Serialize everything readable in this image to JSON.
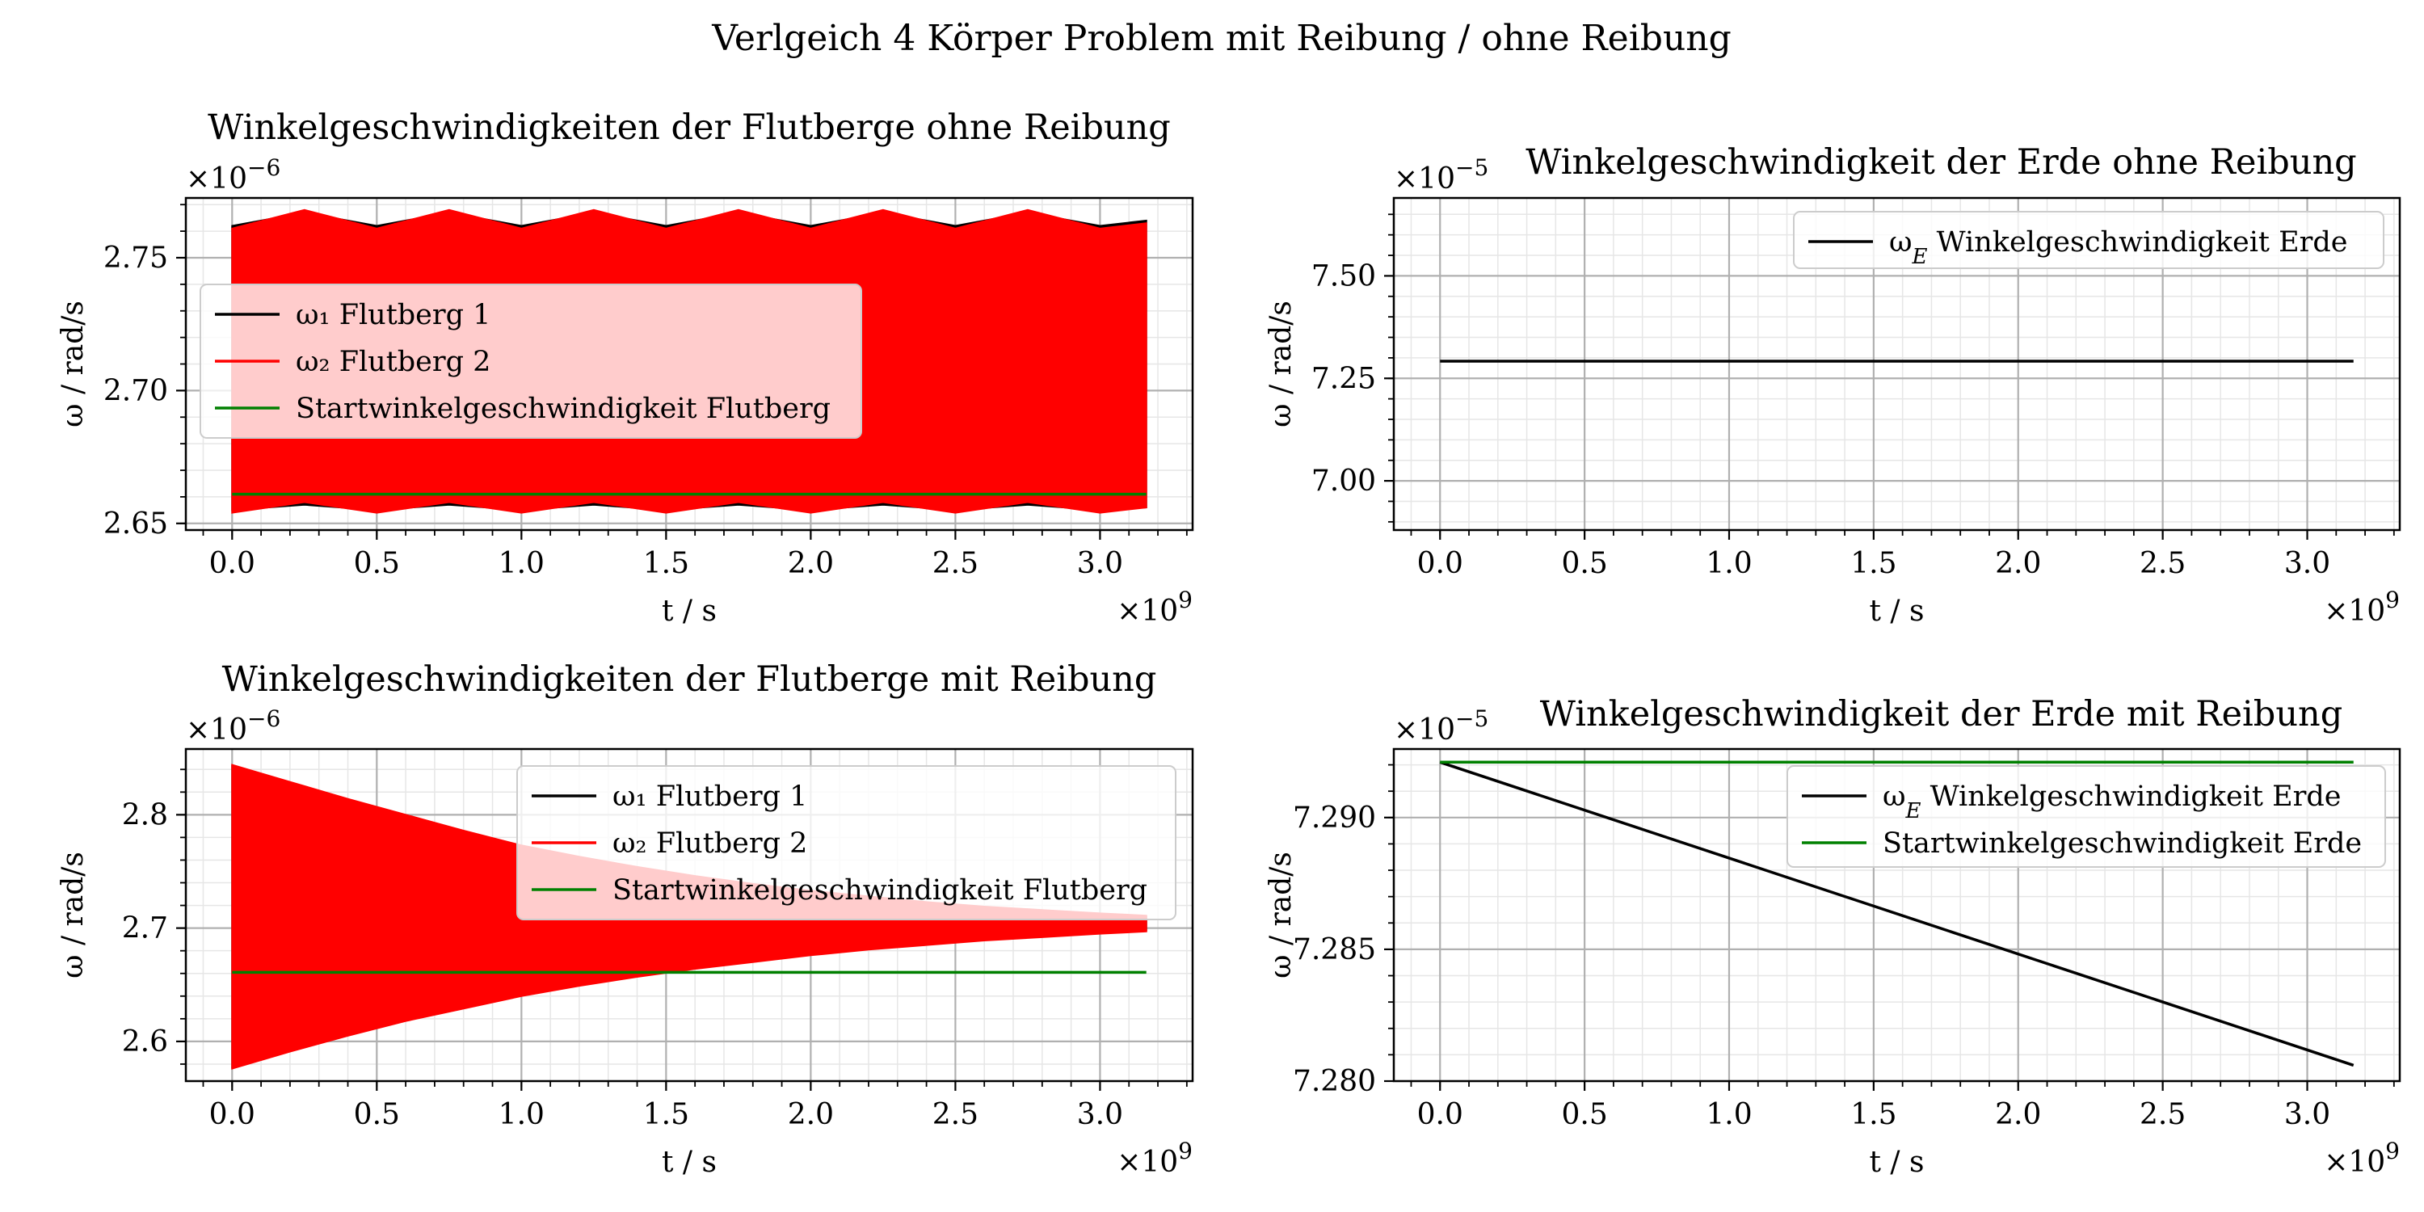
{
  "figure": {
    "suptitle": "Verlgeich 4 Körper Problem mit Reibung / ohne Reibung"
  },
  "colors": {
    "omega1": "#000000",
    "omega2": "#ff0000",
    "start": "#008000",
    "grid": "#b0b0b0",
    "minor_grid": "#e6e6e6"
  },
  "chart_data": [
    {
      "type": "line",
      "title": "Winkelgeschwindigkeiten der Flutberge ohne Reibung",
      "xlabel": "t / s",
      "ylabel": "ω / rad/s",
      "x_multiplier": "×10^9",
      "y_multiplier": "×10^−6",
      "xlim": [
        -0.16,
        3.32
      ],
      "ylim": [
        2.6475,
        2.7725
      ],
      "xticks": [
        0.0,
        0.5,
        1.0,
        1.5,
        2.0,
        2.5,
        3.0
      ],
      "xtick_labels": [
        "0.0",
        "0.5",
        "1.0",
        "1.5",
        "2.0",
        "2.5",
        "3.0"
      ],
      "yticks": [
        2.65,
        2.7,
        2.75
      ],
      "ytick_labels": [
        "2.65",
        "2.70",
        "2.75"
      ],
      "grid": true,
      "legend": "upper-left",
      "x": [
        0.0,
        0.25,
        0.5,
        0.75,
        1.0,
        1.25,
        1.5,
        1.75,
        2.0,
        2.25,
        2.5,
        2.75,
        3.0,
        3.16
      ],
      "series": [
        {
          "name": "ω₁ Flutberg 1",
          "kind": "band",
          "color": "#000000",
          "lower": [
            2.655,
            2.657,
            2.655,
            2.657,
            2.655,
            2.657,
            2.655,
            2.657,
            2.655,
            2.657,
            2.655,
            2.657,
            2.655,
            2.656
          ],
          "upper": [
            2.762,
            2.767,
            2.762,
            2.767,
            2.762,
            2.767,
            2.762,
            2.767,
            2.762,
            2.767,
            2.762,
            2.767,
            2.762,
            2.764
          ]
        },
        {
          "name": "ω₂ Flutberg 2",
          "kind": "band",
          "color": "#ff0000",
          "lower": [
            2.654,
            2.658,
            2.654,
            2.658,
            2.654,
            2.658,
            2.654,
            2.658,
            2.654,
            2.658,
            2.654,
            2.658,
            2.654,
            2.656
          ],
          "upper": [
            2.761,
            2.768,
            2.761,
            2.768,
            2.761,
            2.768,
            2.761,
            2.768,
            2.761,
            2.768,
            2.761,
            2.768,
            2.761,
            2.763
          ]
        },
        {
          "name": "Startwinkelgeschwindigkeit Flutberg",
          "kind": "line",
          "color": "#008000",
          "values": [
            2.661,
            2.661,
            2.661,
            2.661,
            2.661,
            2.661,
            2.661,
            2.661,
            2.661,
            2.661,
            2.661,
            2.661,
            2.661,
            2.661
          ]
        }
      ]
    },
    {
      "type": "line",
      "title": "Winkelgeschwindigkeit der Erde ohne Reibung",
      "xlabel": "t / s",
      "ylabel": "ω / rad/s",
      "x_multiplier": "×10^9",
      "y_multiplier": "×10^−5",
      "xlim": [
        -0.16,
        3.32
      ],
      "ylim": [
        6.88,
        7.69
      ],
      "xticks": [
        0.0,
        0.5,
        1.0,
        1.5,
        2.0,
        2.5,
        3.0
      ],
      "xtick_labels": [
        "0.0",
        "0.5",
        "1.0",
        "1.5",
        "2.0",
        "2.5",
        "3.0"
      ],
      "yticks": [
        7.0,
        7.25,
        7.5
      ],
      "ytick_labels": [
        "7.00",
        "7.25",
        "7.50"
      ],
      "grid": true,
      "legend": "upper-right",
      "x": [
        0.0,
        3.16
      ],
      "series": [
        {
          "name": "ω_E Winkelgeschwindigkeit Erde",
          "kind": "line",
          "color": "#000000",
          "values": [
            7.292,
            7.292
          ]
        }
      ]
    },
    {
      "type": "line",
      "title": "Winkelgeschwindigkeiten der Flutberge mit Reibung",
      "xlabel": "t / s",
      "ylabel": "ω / rad/s",
      "x_multiplier": "×10^9",
      "y_multiplier": "×10^−6",
      "xlim": [
        -0.16,
        3.32
      ],
      "ylim": [
        2.565,
        2.858
      ],
      "xticks": [
        0.0,
        0.5,
        1.0,
        1.5,
        2.0,
        2.5,
        3.0
      ],
      "xtick_labels": [
        "0.0",
        "0.5",
        "1.0",
        "1.5",
        "2.0",
        "2.5",
        "3.0"
      ],
      "yticks": [
        2.6,
        2.7,
        2.8
      ],
      "ytick_labels": [
        "2.6",
        "2.7",
        "2.8"
      ],
      "grid": true,
      "legend": "upper-right",
      "x": [
        0.0,
        0.2,
        0.4,
        0.6,
        0.8,
        1.0,
        1.2,
        1.4,
        1.6,
        1.8,
        2.0,
        2.2,
        2.4,
        2.6,
        2.8,
        3.0,
        3.16
      ],
      "series": [
        {
          "name": "ω₁ Flutberg 1",
          "kind": "band",
          "color": "#000000",
          "lower": [
            2.577,
            2.592,
            2.606,
            2.619,
            2.63,
            2.641,
            2.65,
            2.658,
            2.665,
            2.671,
            2.677,
            2.682,
            2.686,
            2.69,
            2.693,
            2.696,
            2.698
          ],
          "upper": [
            2.843,
            2.828,
            2.813,
            2.799,
            2.785,
            2.772,
            2.762,
            2.753,
            2.745,
            2.738,
            2.732,
            2.727,
            2.722,
            2.718,
            2.715,
            2.712,
            2.71
          ]
        },
        {
          "name": "ω₂ Flutberg 2",
          "kind": "band",
          "color": "#ff0000",
          "lower": [
            2.576,
            2.591,
            2.605,
            2.618,
            2.629,
            2.64,
            2.649,
            2.657,
            2.664,
            2.67,
            2.676,
            2.681,
            2.685,
            2.689,
            2.692,
            2.695,
            2.697
          ],
          "upper": [
            2.844,
            2.829,
            2.814,
            2.8,
            2.786,
            2.773,
            2.763,
            2.754,
            2.746,
            2.739,
            2.733,
            2.728,
            2.723,
            2.719,
            2.716,
            2.713,
            2.711
          ]
        },
        {
          "name": "Startwinkelgeschwindigkeit Flutberg",
          "kind": "line",
          "color": "#008000",
          "values": [
            2.661,
            2.661,
            2.661,
            2.661,
            2.661,
            2.661,
            2.661,
            2.661,
            2.661,
            2.661,
            2.661,
            2.661,
            2.661,
            2.661,
            2.661,
            2.661,
            2.661
          ]
        }
      ]
    },
    {
      "type": "line",
      "title": "Winkelgeschwindigkeit der Erde mit Reibung",
      "xlabel": "t / s",
      "ylabel": "ω / rad/s",
      "x_multiplier": "×10^9",
      "y_multiplier": "×10^−5",
      "xlim": [
        -0.16,
        3.32
      ],
      "ylim": [
        7.28,
        7.2926
      ],
      "xticks": [
        0.0,
        0.5,
        1.0,
        1.5,
        2.0,
        2.5,
        3.0
      ],
      "xtick_labels": [
        "0.0",
        "0.5",
        "1.0",
        "1.5",
        "2.0",
        "2.5",
        "3.0"
      ],
      "yticks": [
        7.28,
        7.285,
        7.29
      ],
      "ytick_labels": [
        "7.280",
        "7.285",
        "7.290"
      ],
      "grid": true,
      "legend": "upper-right",
      "x": [
        0.0,
        3.16
      ],
      "series": [
        {
          "name": "ω_E Winkelgeschwindigkeit Erde",
          "kind": "line",
          "color": "#000000",
          "values": [
            7.2921,
            7.2806
          ]
        },
        {
          "name": "Startwinkelgeschwindigkeit Erde",
          "kind": "line",
          "color": "#008000",
          "values": [
            7.2921,
            7.2921
          ]
        }
      ]
    }
  ]
}
